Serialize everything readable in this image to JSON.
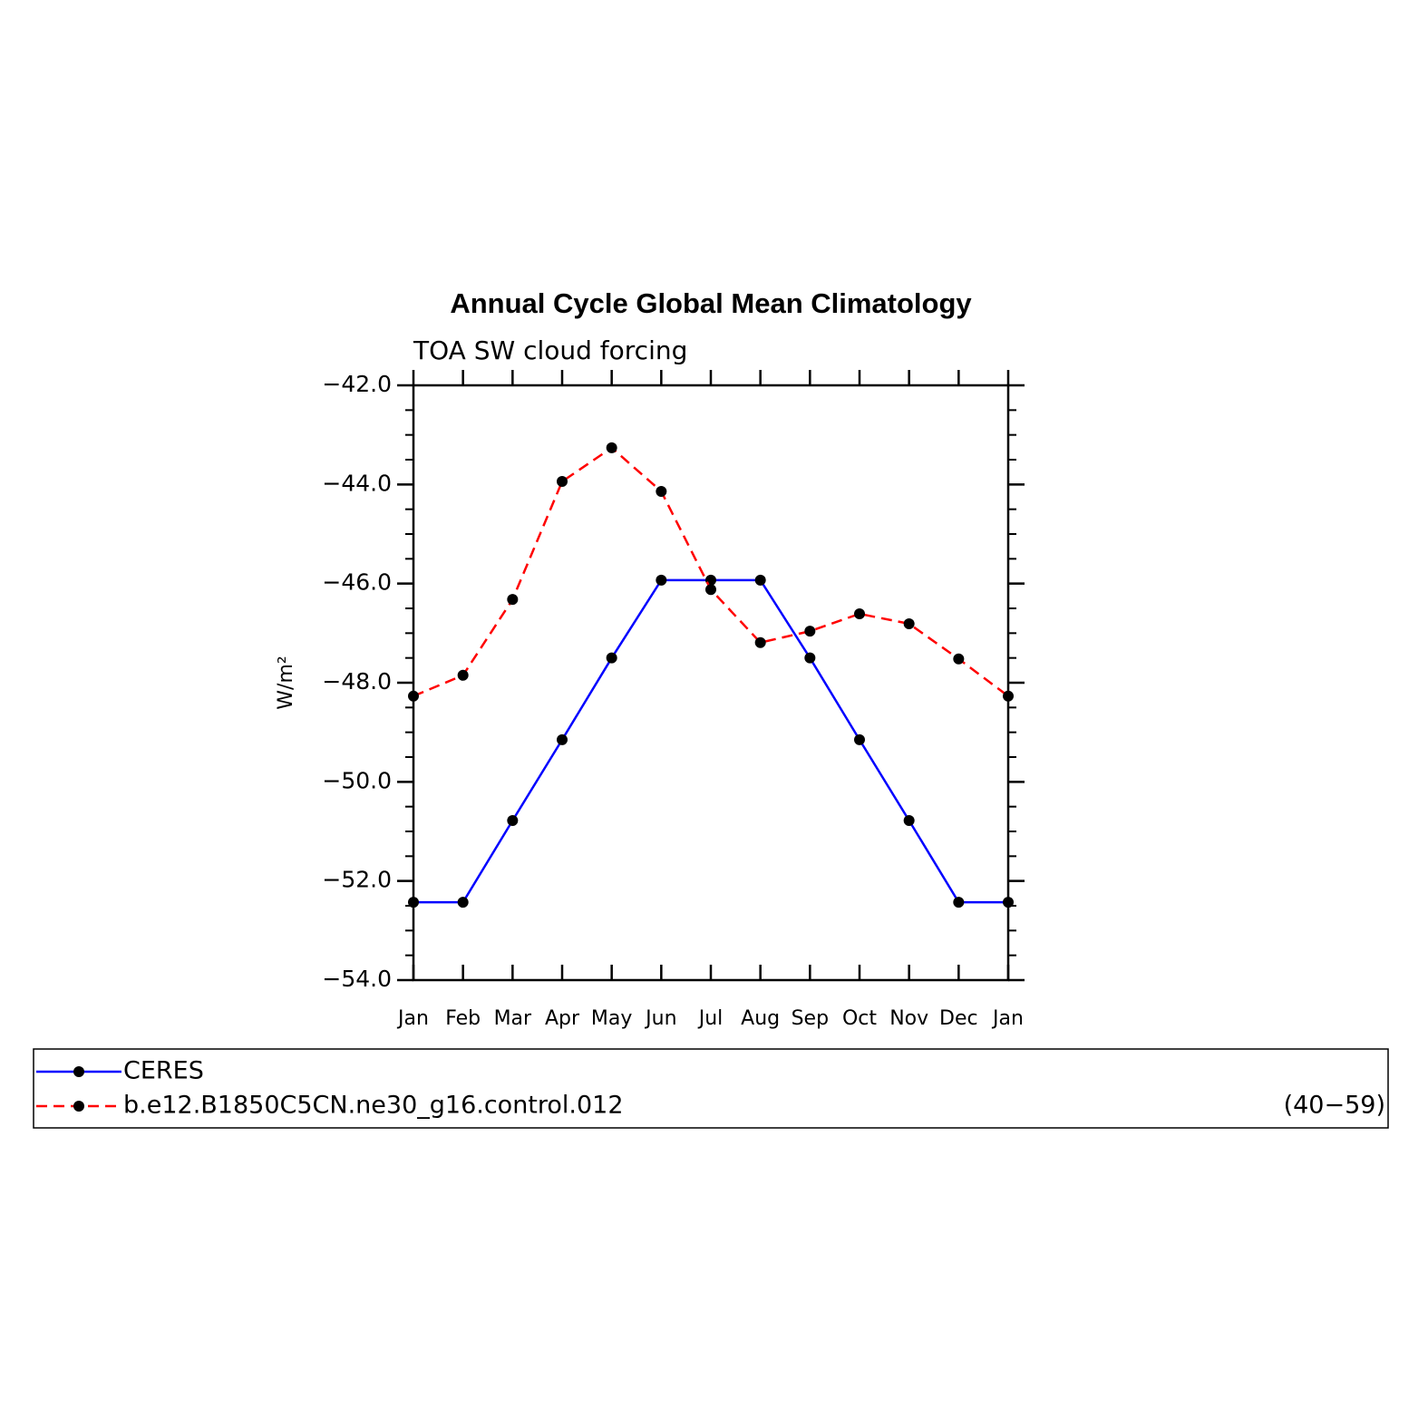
{
  "chart_data": {
    "type": "line",
    "title": "Annual Cycle Global Mean Climatology",
    "subtitle": "TOA SW cloud forcing",
    "y_label": "W/m²",
    "categories": [
      "Jan",
      "Feb",
      "Mar",
      "Apr",
      "May",
      "Jun",
      "Jul",
      "Aug",
      "Sep",
      "Oct",
      "Nov",
      "Dec",
      "Jan"
    ],
    "series": [
      {
        "name": "CERES",
        "color": "#0000ff",
        "dash": false,
        "values": [
          -52.43,
          -52.43,
          -50.78,
          -49.15,
          -47.5,
          -45.93,
          -45.93,
          -45.93,
          -47.5,
          -49.15,
          -50.78,
          -52.43,
          -52.43
        ]
      },
      {
        "name": "b.e12.B1850C5CN.ne30_g16.control.012",
        "color": "#ff0000",
        "dash": true,
        "years": "(40−59)",
        "values": [
          -48.27,
          -47.85,
          -46.32,
          -43.94,
          -43.26,
          -44.14,
          -46.12,
          -47.19,
          -46.96,
          -46.61,
          -46.81,
          -47.52,
          -48.27
        ]
      }
    ],
    "ylim": [
      -54,
      -42
    ],
    "yticks": [
      {
        "value": -54,
        "label": "−54.0"
      },
      {
        "value": -52,
        "label": "−52.0"
      },
      {
        "value": -50,
        "label": "−50.0"
      },
      {
        "value": -48,
        "label": "−48.0"
      },
      {
        "value": -46,
        "label": "−46.0"
      },
      {
        "value": -44,
        "label": "−44.0"
      },
      {
        "value": -42,
        "label": "−42.0"
      }
    ],
    "grid": false
  }
}
